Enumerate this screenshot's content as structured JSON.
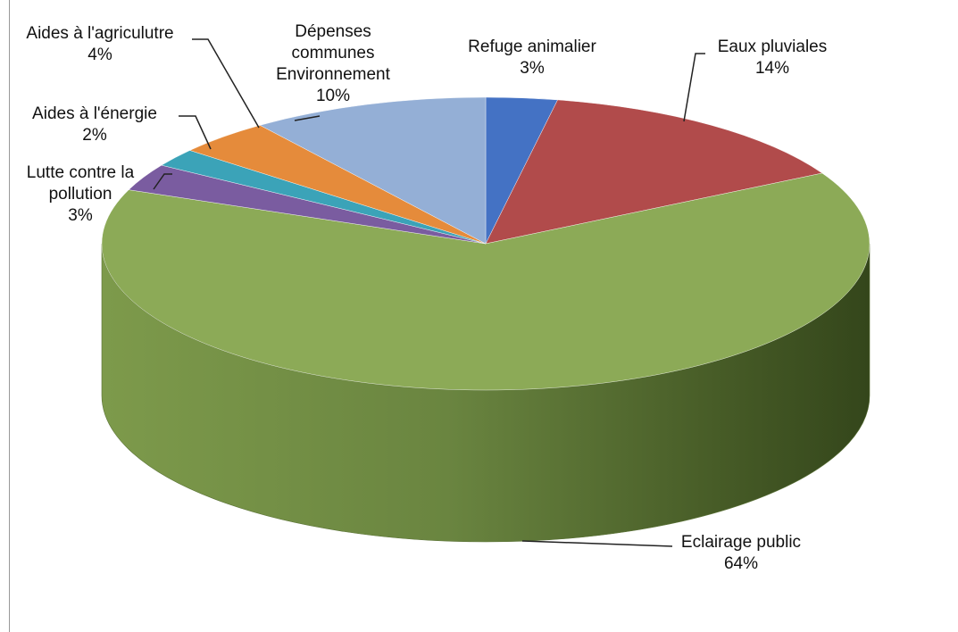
{
  "chart_data": {
    "type": "pie",
    "title": "",
    "series": [
      {
        "label_lines": [
          "Refuge animalier"
        ],
        "pct": "3%",
        "value": 3,
        "color": "#4472c4"
      },
      {
        "label_lines": [
          "Eaux pluviales"
        ],
        "pct": "14%",
        "value": 14,
        "color": "#b14b4b"
      },
      {
        "label_lines": [
          "Eclairage public"
        ],
        "pct": "64%",
        "value": 64,
        "color": "#8caa57"
      },
      {
        "label_lines": [
          "Lutte contre la",
          "pollution"
        ],
        "pct": "3%",
        "value": 3,
        "color": "#7a5ca0"
      },
      {
        "label_lines": [
          "Aides à l'énergie"
        ],
        "pct": "2%",
        "value": 2,
        "color": "#3ba3b8"
      },
      {
        "label_lines": [
          "Aides à l'agriculutre"
        ],
        "pct": "4%",
        "value": 4,
        "color": "#e58b3b"
      },
      {
        "label_lines": [
          "Dépenses",
          "communes",
          "Environnement"
        ],
        "pct": "10%",
        "value": 10,
        "color": "#94afd6"
      }
    ],
    "legend": "none",
    "style": "3d-pie"
  }
}
